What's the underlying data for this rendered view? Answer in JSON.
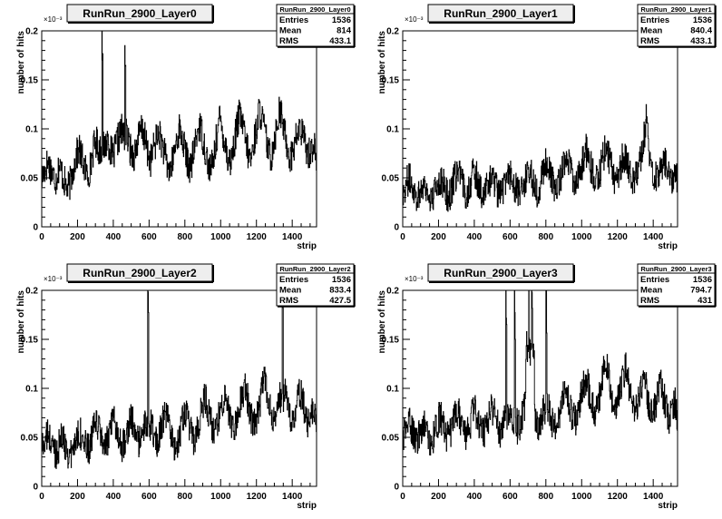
{
  "colors": {
    "frame": "#000000",
    "line": "#000000",
    "background": "#ffffff",
    "title_bg": "#eeeeee"
  },
  "chart_data": [
    {
      "type": "line",
      "title": "RunRun_2900_Layer0",
      "xlabel": "strip",
      "ylabel": "number of hits",
      "ylabel_exponent": "×10⁻³",
      "xlim": [
        0,
        1536
      ],
      "ylim": [
        0,
        0.2
      ],
      "x_ticks": [
        "0",
        "200",
        "400",
        "600",
        "800",
        "1000",
        "1200",
        "1400"
      ],
      "y_ticks": [
        "0",
        "0.05",
        "0.1",
        "0.15",
        "0.2"
      ],
      "stats": {
        "box_title": "RunRun_2900_Layer0",
        "rows": [
          [
            "Entries",
            "1536"
          ],
          [
            "Mean",
            "814"
          ],
          [
            "RMS",
            "433.1"
          ]
        ]
      },
      "series": [
        {
          "x": [
            0,
            16,
            32,
            48,
            64,
            80,
            96,
            112,
            128,
            144,
            160,
            176,
            192,
            208,
            224,
            240,
            256,
            272,
            288,
            304,
            320,
            336,
            352,
            368,
            384,
            400,
            416,
            432,
            448,
            464,
            480,
            496,
            512,
            528,
            544,
            560,
            576,
            592,
            608,
            624,
            640,
            656,
            672,
            688,
            704,
            720,
            736,
            752,
            768,
            784,
            800,
            816,
            832,
            848,
            864,
            880,
            896,
            912,
            928,
            944,
            960,
            976,
            992,
            1008,
            1024,
            1040,
            1056,
            1072,
            1088,
            1104,
            1120,
            1136,
            1152,
            1168,
            1184,
            1200,
            1216,
            1232,
            1248,
            1264,
            1280,
            1296,
            1312,
            1328,
            1344,
            1360,
            1376,
            1392,
            1408,
            1424,
            1440,
            1456,
            1472,
            1488,
            1504,
            1520,
            1535
          ],
          "y": [
            0.05,
            0.058,
            0.066,
            0.06,
            0.052,
            0.048,
            0.062,
            0.055,
            0.045,
            0.038,
            0.046,
            0.06,
            0.072,
            0.08,
            0.07,
            0.06,
            0.052,
            0.062,
            0.08,
            0.088,
            0.078,
            0.2,
            0.082,
            0.09,
            0.078,
            0.07,
            0.085,
            0.092,
            0.1,
            0.185,
            0.088,
            0.078,
            0.072,
            0.082,
            0.094,
            0.1,
            0.09,
            0.075,
            0.068,
            0.08,
            0.09,
            0.095,
            0.085,
            0.072,
            0.06,
            0.058,
            0.072,
            0.088,
            0.1,
            0.09,
            0.078,
            0.065,
            0.06,
            0.075,
            0.092,
            0.105,
            0.094,
            0.08,
            0.065,
            0.058,
            0.07,
            0.09,
            0.11,
            0.1,
            0.085,
            0.07,
            0.066,
            0.082,
            0.1,
            0.115,
            0.105,
            0.09,
            0.075,
            0.068,
            0.085,
            0.1,
            0.12,
            0.11,
            0.095,
            0.078,
            0.07,
            0.088,
            0.1,
            0.12,
            0.108,
            0.094,
            0.078,
            0.07,
            0.082,
            0.092,
            0.1,
            0.095,
            0.085,
            0.075,
            0.078,
            0.085,
            0.07
          ]
        }
      ]
    },
    {
      "type": "line",
      "title": "RunRun_2900_Layer1",
      "xlabel": "strip",
      "ylabel": "number of hits",
      "ylabel_exponent": "×10⁻³",
      "xlim": [
        0,
        1536
      ],
      "ylim": [
        0,
        0.2
      ],
      "x_ticks": [
        "0",
        "200",
        "400",
        "600",
        "800",
        "1000",
        "1200",
        "1400"
      ],
      "y_ticks": [
        "0",
        "0.05",
        "0.1",
        "0.15",
        "0.2"
      ],
      "stats": {
        "box_title": "RunRun_2900_Layer1",
        "rows": [
          [
            "Entries",
            "1536"
          ],
          [
            "Mean",
            "840.4"
          ],
          [
            "RMS",
            "433.1"
          ]
        ]
      },
      "series": [
        {
          "x": [
            0,
            16,
            32,
            48,
            64,
            80,
            96,
            112,
            128,
            144,
            160,
            176,
            192,
            208,
            224,
            240,
            256,
            272,
            288,
            304,
            320,
            336,
            352,
            368,
            384,
            400,
            416,
            432,
            448,
            464,
            480,
            496,
            512,
            528,
            544,
            560,
            576,
            592,
            608,
            624,
            640,
            656,
            672,
            688,
            704,
            720,
            736,
            752,
            768,
            784,
            800,
            816,
            832,
            848,
            864,
            880,
            896,
            912,
            928,
            944,
            960,
            976,
            992,
            1008,
            1024,
            1040,
            1056,
            1072,
            1088,
            1104,
            1120,
            1136,
            1152,
            1168,
            1184,
            1200,
            1216,
            1232,
            1248,
            1264,
            1280,
            1296,
            1312,
            1328,
            1344,
            1360,
            1376,
            1392,
            1408,
            1424,
            1440,
            1456,
            1472,
            1488,
            1504,
            1520,
            1535
          ],
          "y": [
            0.035,
            0.042,
            0.05,
            0.045,
            0.038,
            0.03,
            0.036,
            0.045,
            0.04,
            0.032,
            0.026,
            0.034,
            0.045,
            0.05,
            0.044,
            0.036,
            0.03,
            0.038,
            0.048,
            0.058,
            0.05,
            0.042,
            0.034,
            0.04,
            0.05,
            0.056,
            0.048,
            0.04,
            0.032,
            0.036,
            0.044,
            0.052,
            0.046,
            0.036,
            0.03,
            0.038,
            0.05,
            0.058,
            0.05,
            0.042,
            0.034,
            0.032,
            0.04,
            0.05,
            0.06,
            0.052,
            0.042,
            0.036,
            0.044,
            0.056,
            0.065,
            0.058,
            0.048,
            0.04,
            0.038,
            0.05,
            0.065,
            0.075,
            0.066,
            0.055,
            0.046,
            0.044,
            0.056,
            0.07,
            0.078,
            0.068,
            0.058,
            0.048,
            0.046,
            0.058,
            0.072,
            0.08,
            0.07,
            0.058,
            0.048,
            0.05,
            0.062,
            0.072,
            0.068,
            0.056,
            0.048,
            0.05,
            0.06,
            0.07,
            0.085,
            0.11,
            0.072,
            0.06,
            0.052,
            0.05,
            0.06,
            0.068,
            0.062,
            0.052,
            0.048,
            0.058,
            0.05
          ]
        }
      ]
    },
    {
      "type": "line",
      "title": "RunRun_2900_Layer2",
      "xlabel": "strip",
      "ylabel": "number of hits",
      "ylabel_exponent": "×10⁻³",
      "xlim": [
        0,
        1536
      ],
      "ylim": [
        0,
        0.2
      ],
      "x_ticks": [
        "0",
        "200",
        "400",
        "600",
        "800",
        "1000",
        "1200",
        "1400"
      ],
      "y_ticks": [
        "0",
        "0.05",
        "0.1",
        "0.15",
        "0.2"
      ],
      "stats": {
        "box_title": "RunRun_2900_Layer2",
        "rows": [
          [
            "Entries",
            "1536"
          ],
          [
            "Mean",
            "833.4"
          ],
          [
            "RMS",
            "427.5"
          ]
        ]
      },
      "series": [
        {
          "x": [
            0,
            16,
            32,
            48,
            64,
            80,
            96,
            112,
            128,
            144,
            160,
            176,
            192,
            208,
            224,
            240,
            256,
            272,
            288,
            304,
            320,
            336,
            352,
            368,
            384,
            400,
            416,
            432,
            448,
            464,
            480,
            496,
            512,
            528,
            544,
            560,
            576,
            592,
            608,
            624,
            640,
            656,
            672,
            688,
            704,
            720,
            736,
            752,
            768,
            784,
            800,
            816,
            832,
            848,
            864,
            880,
            896,
            912,
            928,
            944,
            960,
            976,
            992,
            1008,
            1024,
            1040,
            1056,
            1072,
            1088,
            1104,
            1120,
            1136,
            1152,
            1168,
            1184,
            1200,
            1216,
            1232,
            1248,
            1264,
            1280,
            1296,
            1312,
            1328,
            1344,
            1360,
            1376,
            1392,
            1408,
            1424,
            1440,
            1456,
            1472,
            1488,
            1504,
            1520,
            1535
          ],
          "y": [
            0.04,
            0.046,
            0.052,
            0.046,
            0.04,
            0.034,
            0.042,
            0.05,
            0.044,
            0.036,
            0.03,
            0.038,
            0.05,
            0.058,
            0.05,
            0.042,
            0.036,
            0.044,
            0.056,
            0.066,
            0.058,
            0.048,
            0.04,
            0.046,
            0.058,
            0.066,
            0.06,
            0.05,
            0.042,
            0.048,
            0.06,
            0.07,
            0.062,
            0.052,
            0.044,
            0.05,
            0.062,
            0.2,
            0.064,
            0.054,
            0.046,
            0.05,
            0.064,
            0.074,
            0.066,
            0.054,
            0.044,
            0.04,
            0.05,
            0.064,
            0.076,
            0.068,
            0.056,
            0.046,
            0.05,
            0.066,
            0.082,
            0.09,
            0.08,
            0.066,
            0.054,
            0.058,
            0.074,
            0.088,
            0.094,
            0.082,
            0.068,
            0.058,
            0.064,
            0.08,
            0.096,
            0.1,
            0.088,
            0.072,
            0.062,
            0.066,
            0.082,
            0.1,
            0.11,
            0.094,
            0.078,
            0.066,
            0.07,
            0.086,
            0.2,
            0.094,
            0.078,
            0.066,
            0.07,
            0.086,
            0.098,
            0.09,
            0.076,
            0.066,
            0.072,
            0.082,
            0.07
          ]
        }
      ]
    },
    {
      "type": "line",
      "title": "RunRun_2900_Layer3",
      "xlabel": "strip",
      "ylabel": "number of hits",
      "ylabel_exponent": "×10⁻³",
      "xlim": [
        0,
        1536
      ],
      "ylim": [
        0,
        0.2
      ],
      "x_ticks": [
        "0",
        "200",
        "400",
        "600",
        "800",
        "1000",
        "1200",
        "1400"
      ],
      "y_ticks": [
        "0",
        "0.05",
        "0.1",
        "0.15",
        "0.2"
      ],
      "stats": {
        "box_title": "RunRun_2900_Layer3",
        "rows": [
          [
            "Entries",
            "1536"
          ],
          [
            "Mean",
            "794.7"
          ],
          [
            "RMS",
            "431"
          ]
        ]
      },
      "series": [
        {
          "x": [
            0,
            16,
            32,
            48,
            64,
            80,
            96,
            112,
            128,
            144,
            160,
            176,
            192,
            208,
            224,
            240,
            256,
            272,
            288,
            304,
            320,
            336,
            352,
            368,
            384,
            400,
            416,
            432,
            448,
            464,
            480,
            496,
            512,
            528,
            544,
            560,
            576,
            592,
            608,
            624,
            640,
            656,
            672,
            688,
            704,
            720,
            736,
            752,
            768,
            784,
            800,
            816,
            832,
            848,
            864,
            880,
            896,
            912,
            928,
            944,
            960,
            976,
            992,
            1008,
            1024,
            1040,
            1056,
            1072,
            1088,
            1104,
            1120,
            1136,
            1152,
            1168,
            1184,
            1200,
            1216,
            1232,
            1248,
            1264,
            1280,
            1296,
            1312,
            1328,
            1344,
            1360,
            1376,
            1392,
            1408,
            1424,
            1440,
            1456,
            1472,
            1488,
            1504,
            1520,
            1535
          ],
          "y": [
            0.05,
            0.058,
            0.066,
            0.06,
            0.052,
            0.046,
            0.054,
            0.064,
            0.058,
            0.05,
            0.044,
            0.052,
            0.064,
            0.072,
            0.064,
            0.054,
            0.048,
            0.056,
            0.068,
            0.078,
            0.07,
            0.06,
            0.052,
            0.058,
            0.07,
            0.08,
            0.072,
            0.062,
            0.054,
            0.06,
            0.072,
            0.082,
            0.074,
            0.064,
            0.056,
            0.062,
            0.2,
            0.084,
            0.076,
            0.2,
            0.058,
            0.064,
            0.076,
            0.086,
            0.2,
            0.2,
            0.07,
            0.06,
            0.066,
            0.078,
            0.2,
            0.082,
            0.068,
            0.06,
            0.066,
            0.08,
            0.094,
            0.1,
            0.088,
            0.074,
            0.066,
            0.072,
            0.088,
            0.104,
            0.11,
            0.098,
            0.084,
            0.074,
            0.08,
            0.096,
            0.12,
            0.13,
            0.108,
            0.09,
            0.08,
            0.086,
            0.1,
            0.116,
            0.12,
            0.104,
            0.088,
            0.078,
            0.084,
            0.098,
            0.11,
            0.1,
            0.084,
            0.074,
            0.08,
            0.094,
            0.104,
            0.094,
            0.08,
            0.07,
            0.076,
            0.086,
            0.072
          ]
        }
      ]
    }
  ]
}
